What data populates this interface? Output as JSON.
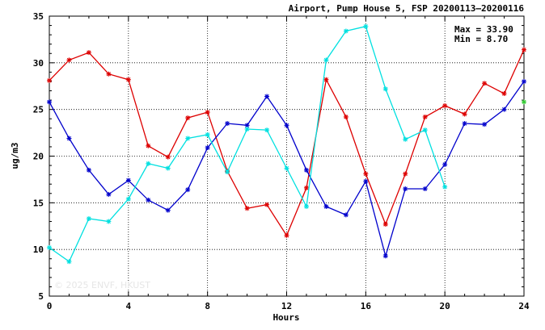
{
  "chart_data": {
    "type": "line",
    "title": "Airport, Pump House 5, FSP 20200113–20200116",
    "xlabel": "Hours",
    "ylabel": "ug/m3",
    "xlim": [
      0,
      24
    ],
    "ylim": [
      5,
      35
    ],
    "x_ticks": [
      "0",
      "4",
      "8",
      "12",
      "16",
      "20",
      "24"
    ],
    "y_ticks": [
      "5",
      "10",
      "15",
      "20",
      "25",
      "30",
      "35"
    ],
    "grid": true,
    "stats": {
      "max_label": "Max = 33.90",
      "min_label": "Min =  8.70"
    },
    "watermark": "© 2025  ENVF, HKUST",
    "x": [
      0,
      1,
      2,
      3,
      4,
      5,
      6,
      7,
      8,
      9,
      10,
      11,
      12,
      13,
      14,
      15,
      16,
      17,
      18,
      19,
      20,
      21,
      22,
      23,
      24
    ],
    "series": [
      {
        "color": "#dd0000",
        "values": [
          28.1,
          30.3,
          31.1,
          28.8,
          28.2,
          21.1,
          19.9,
          24.1,
          24.7,
          18.4,
          14.4,
          14.8,
          11.5,
          16.6,
          28.2,
          24.2,
          18.1,
          12.7,
          18.1,
          24.2,
          25.4,
          24.5,
          27.8,
          26.7,
          31.4
        ]
      },
      {
        "color": "#0000cc",
        "values": [
          25.8,
          21.9,
          18.5,
          15.9,
          17.4,
          15.3,
          14.2,
          16.4,
          20.9,
          23.5,
          23.3,
          26.4,
          23.3,
          18.5,
          14.6,
          13.7,
          17.3,
          9.3,
          16.5,
          16.5,
          19.1,
          23.5,
          23.4,
          25.0,
          28.0
        ]
      },
      {
        "color": "#00e0e0",
        "values": [
          10.2,
          8.7,
          13.3,
          13.0,
          15.4,
          19.2,
          18.7,
          21.9,
          22.3,
          18.3,
          22.9,
          22.8,
          18.7,
          14.6,
          30.3,
          33.4,
          33.9,
          27.2,
          21.8,
          22.8,
          16.7,
          null,
          null,
          null,
          null
        ]
      },
      {
        "color": "#33cc33",
        "values": [
          null,
          null,
          null,
          null,
          null,
          null,
          null,
          null,
          null,
          null,
          null,
          null,
          null,
          null,
          null,
          null,
          null,
          null,
          null,
          null,
          null,
          null,
          null,
          null,
          25.8
        ]
      }
    ]
  }
}
